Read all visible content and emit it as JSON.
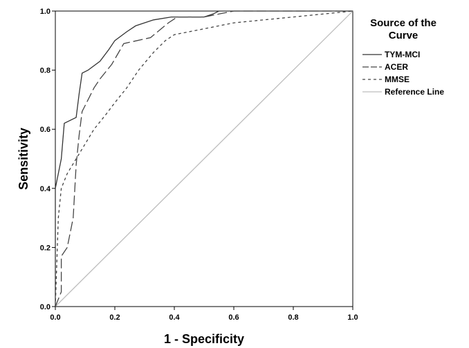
{
  "chart_data": {
    "type": "line",
    "title": "",
    "xlabel": "1 - Specificity",
    "ylabel": "Sensitivity",
    "xlim": [
      0,
      1
    ],
    "ylim": [
      0,
      1
    ],
    "x_ticks": [
      "0.0",
      "0.2",
      "0.4",
      "0.6",
      "0.8",
      "1.0"
    ],
    "y_ticks": [
      "0.0",
      "0.2",
      "0.4",
      "0.6",
      "0.8",
      "1.0"
    ],
    "grid": false,
    "legend": {
      "title_lines": [
        "Source of the",
        "Curve"
      ],
      "position": "right"
    },
    "series": [
      {
        "name": "TYM-MCI",
        "style": "solid",
        "color": "#333333",
        "x": [
          0,
          0,
          0.02,
          0.03,
          0.07,
          0.08,
          0.09,
          0.11,
          0.15,
          0.18,
          0.2,
          0.24,
          0.27,
          0.33,
          0.39,
          0.41,
          0.5,
          0.53,
          0.55,
          0.6,
          1.0
        ],
        "y": [
          0,
          0.4,
          0.5,
          0.62,
          0.64,
          0.72,
          0.79,
          0.8,
          0.83,
          0.87,
          0.9,
          0.93,
          0.95,
          0.97,
          0.98,
          0.98,
          0.98,
          0.99,
          1.0,
          1.0,
          1.0
        ]
      },
      {
        "name": "ACER",
        "style": "longdash",
        "color": "#444444",
        "x": [
          0,
          0.02,
          0.02,
          0.04,
          0.05,
          0.06,
          0.07,
          0.08,
          0.09,
          0.1,
          0.13,
          0.15,
          0.19,
          0.23,
          0.32,
          0.38,
          0.41,
          0.5,
          0.55,
          0.6,
          1.0
        ],
        "y": [
          0,
          0.05,
          0.17,
          0.2,
          0.25,
          0.3,
          0.48,
          0.58,
          0.66,
          0.68,
          0.74,
          0.77,
          0.82,
          0.89,
          0.91,
          0.96,
          0.98,
          0.98,
          0.99,
          1.0,
          1.0
        ]
      },
      {
        "name": "MMSE",
        "style": "shortdash",
        "color": "#444444",
        "x": [
          0,
          0.01,
          0.02,
          0.04,
          0.07,
          0.1,
          0.13,
          0.17,
          0.2,
          0.24,
          0.28,
          0.33,
          0.37,
          0.4,
          0.5,
          0.6,
          0.7,
          0.8,
          0.9,
          1.0
        ],
        "y": [
          0,
          0.3,
          0.4,
          0.45,
          0.5,
          0.55,
          0.6,
          0.65,
          0.69,
          0.74,
          0.8,
          0.86,
          0.9,
          0.92,
          0.94,
          0.96,
          0.97,
          0.98,
          0.99,
          1.0
        ]
      },
      {
        "name": "Reference Line",
        "style": "solid",
        "color": "#bdbdbd",
        "x": [
          0,
          1
        ],
        "y": [
          0,
          1
        ]
      }
    ]
  }
}
